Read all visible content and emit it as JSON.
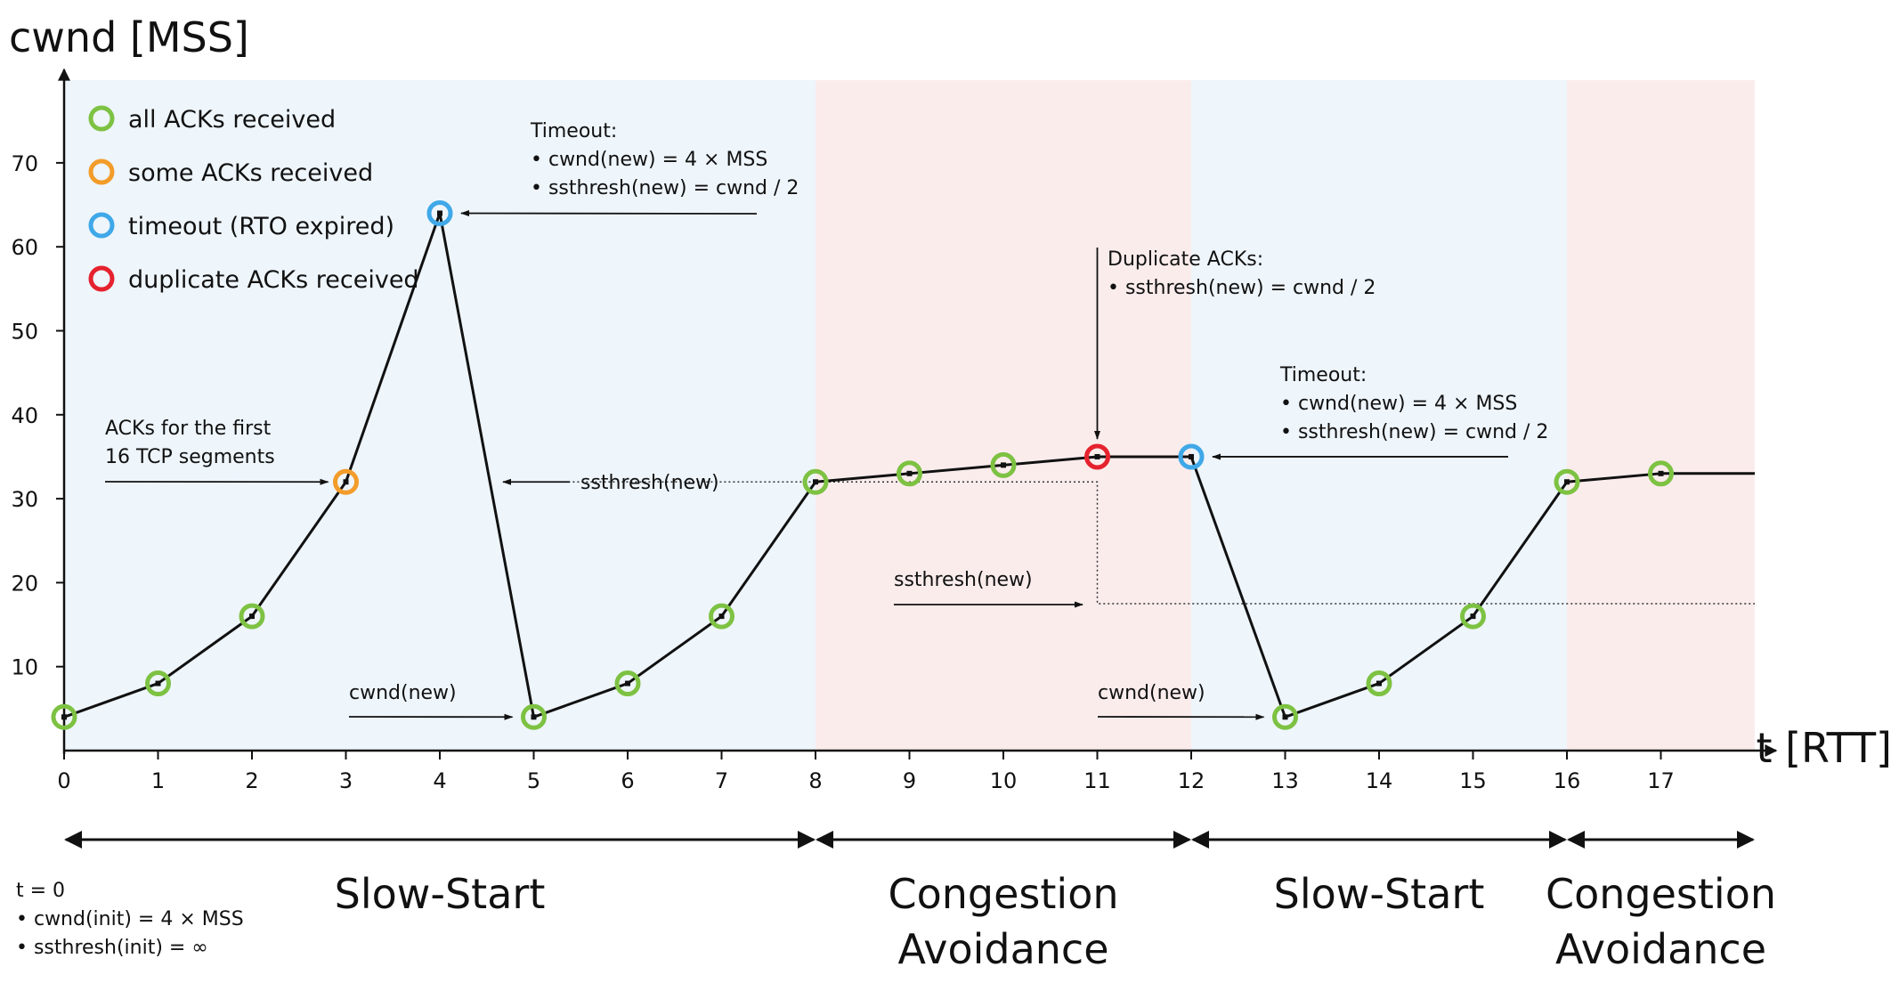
{
  "chart_data": {
    "type": "line",
    "xlabel": "t [RTT]",
    "ylabel": "cwnd [MSS]",
    "x_ticks": [
      0,
      1,
      2,
      3,
      4,
      5,
      6,
      7,
      8,
      9,
      10,
      11,
      12,
      13,
      14,
      15,
      16,
      17
    ],
    "y_ticks": [
      10,
      20,
      30,
      40,
      50,
      60,
      70
    ],
    "xlim": [
      0,
      18
    ],
    "ylim": [
      0,
      80
    ],
    "grid": false,
    "series": [
      {
        "x": [
          0,
          1,
          2,
          3,
          4,
          5,
          6,
          7,
          8,
          9,
          10,
          11,
          12,
          13,
          14,
          15,
          16,
          17,
          18
        ],
        "values": [
          4,
          8,
          16,
          32,
          64,
          4,
          8,
          16,
          32,
          33,
          34,
          35,
          35,
          4,
          8,
          16,
          32,
          33,
          33
        ],
        "status": [
          "all",
          "all",
          "all",
          "some",
          "timeout",
          "all",
          "all",
          "all",
          "all",
          "all",
          "all",
          "dup",
          "timeout",
          "all",
          "all",
          "all",
          "all",
          "all",
          ""
        ]
      }
    ],
    "ssthresh_lines": [
      {
        "from_x": 8,
        "to_x": 11,
        "y": 32
      },
      {
        "from_x": 11,
        "to_x": 18,
        "y": 17.5
      }
    ],
    "phases": [
      {
        "label_lines": [
          "Slow-Start"
        ],
        "from_x": 0,
        "to_x": 8,
        "shade": "#eef5fb"
      },
      {
        "label_lines": [
          "Congestion",
          "Avoidance"
        ],
        "from_x": 8,
        "to_x": 12,
        "shade": "#fbecec"
      },
      {
        "label_lines": [
          "Slow-Start"
        ],
        "from_x": 12,
        "to_x": 16,
        "shade": "#eef5fb"
      },
      {
        "label_lines": [
          "Congestion",
          "Avoidance"
        ],
        "from_x": 16,
        "to_x": 18,
        "shade": "#fbecec"
      }
    ],
    "legend": {
      "placement": "top-left",
      "entries": [
        {
          "label": "all ACKs received",
          "color": "#7dc242"
        },
        {
          "label": "some ACKs received",
          "color": "#f39c2a"
        },
        {
          "label": "timeout (RTO expired)",
          "color": "#3fa8e8"
        },
        {
          "label": "duplicate ACKs received",
          "color": "#e5222e"
        }
      ]
    },
    "annotations": [
      {
        "lines": [
          "Timeout:",
          "• cwnd(new) = 4 × MSS",
          "• ssthresh(new) = cwnd / 2"
        ],
        "target_x": 4,
        "target_y": 64
      },
      {
        "lines": [
          "ACKs for the first",
          "16 TCP segments"
        ],
        "target_x": 3,
        "target_y": 32
      },
      {
        "lines": [
          "ssthresh(new)"
        ],
        "target_x": 5,
        "target_y": 32
      },
      {
        "lines": [
          "cwnd(new)"
        ],
        "target_x": 5,
        "target_y": 4
      },
      {
        "lines": [
          "Duplicate ACKs:",
          "• ssthresh(new) = cwnd / 2"
        ],
        "target_x": 11,
        "target_y": 35
      },
      {
        "lines": [
          "Timeout:",
          "• cwnd(new) = 4 × MSS",
          "• ssthresh(new) = cwnd / 2"
        ],
        "target_x": 12,
        "target_y": 35
      },
      {
        "lines": [
          "ssthresh(new)"
        ],
        "target_x": 11,
        "target_y": 17.5
      },
      {
        "lines": [
          "cwnd(new)"
        ],
        "target_x": 13,
        "target_y": 4
      }
    ],
    "initial_note": [
      "t = 0",
      "• cwnd(init) = 4 × MSS",
      "• ssthresh(init) = ∞"
    ]
  }
}
